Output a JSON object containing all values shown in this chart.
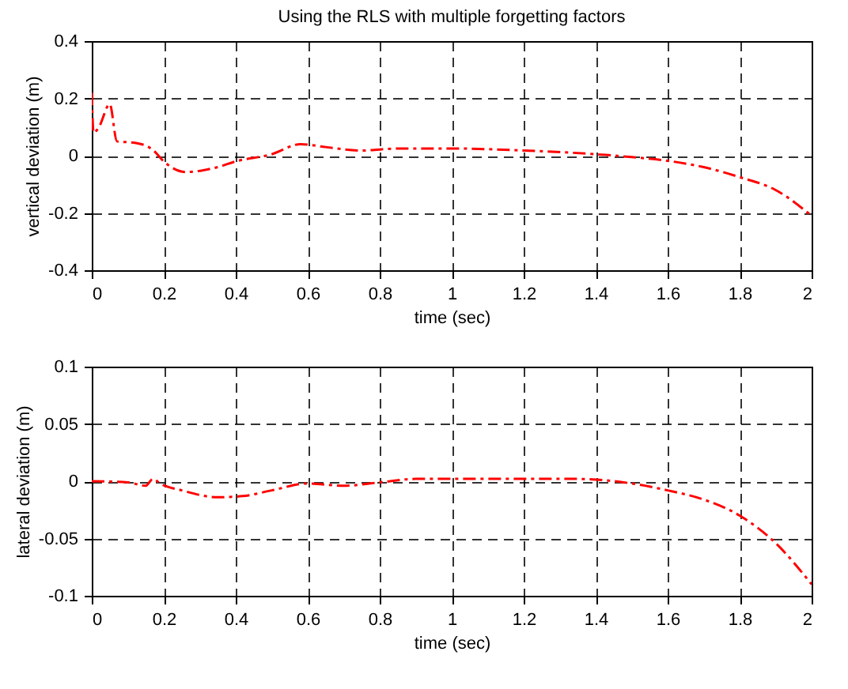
{
  "chart_data": [
    {
      "type": "line",
      "title": "Using the RLS with multiple forgetting factors",
      "xlabel": "time (sec)",
      "ylabel": "vertical deviation (m)",
      "xlim": [
        0,
        2
      ],
      "xticks": [
        0,
        0.2,
        0.4,
        0.6,
        0.8,
        1,
        1.2,
        1.4,
        1.6,
        1.8,
        2
      ],
      "ylim": [
        -0.4,
        0.4
      ],
      "yticks": [
        -0.4,
        -0.2,
        0,
        0.2,
        0.4
      ],
      "grid": true,
      "line_style": "dashed",
      "series": [
        {
          "color": "#ff0000",
          "x": [
            0,
            0.005,
            0.02,
            0.05,
            0.07,
            0.12,
            0.17,
            0.2,
            0.26,
            0.35,
            0.4,
            0.5,
            0.58,
            0.65,
            0.75,
            0.85,
            1.0,
            1.2,
            1.4,
            1.5,
            1.6,
            1.7,
            1.8,
            1.9,
            2.0
          ],
          "values": [
            0.22,
            0.08,
            0.1,
            0.18,
            0.05,
            0.045,
            0.02,
            -0.02,
            -0.057,
            -0.04,
            -0.02,
            0.005,
            0.04,
            0.03,
            0.018,
            0.025,
            0.025,
            0.018,
            0.005,
            -0.005,
            -0.018,
            -0.04,
            -0.075,
            -0.12,
            -0.21
          ]
        }
      ]
    },
    {
      "type": "line",
      "xlabel": "time (sec)",
      "ylabel": "lateral deviation (m)",
      "xlim": [
        0,
        2
      ],
      "xticks": [
        0,
        0.2,
        0.4,
        0.6,
        0.8,
        1,
        1.2,
        1.4,
        1.6,
        1.8,
        2
      ],
      "ylim": [
        -0.1,
        0.1
      ],
      "yticks": [
        -0.1,
        -0.05,
        0,
        0.05,
        0.1
      ],
      "grid": true,
      "line_style": "dashed",
      "series": [
        {
          "color": "#ff0000",
          "x": [
            0,
            0.1,
            0.15,
            0.17,
            0.19,
            0.25,
            0.35,
            0.42,
            0.5,
            0.6,
            0.7,
            0.8,
            0.9,
            1.0,
            1.2,
            1.35,
            1.5,
            1.6,
            1.7,
            1.8,
            1.9,
            2.0
          ],
          "values": [
            0,
            -0.001,
            -0.004,
            0.002,
            -0.002,
            -0.008,
            -0.014,
            -0.013,
            -0.008,
            -0.002,
            -0.004,
            -0.001,
            0.002,
            0.002,
            0.002,
            0.002,
            -0.002,
            -0.008,
            -0.016,
            -0.03,
            -0.054,
            -0.09
          ]
        }
      ]
    }
  ]
}
